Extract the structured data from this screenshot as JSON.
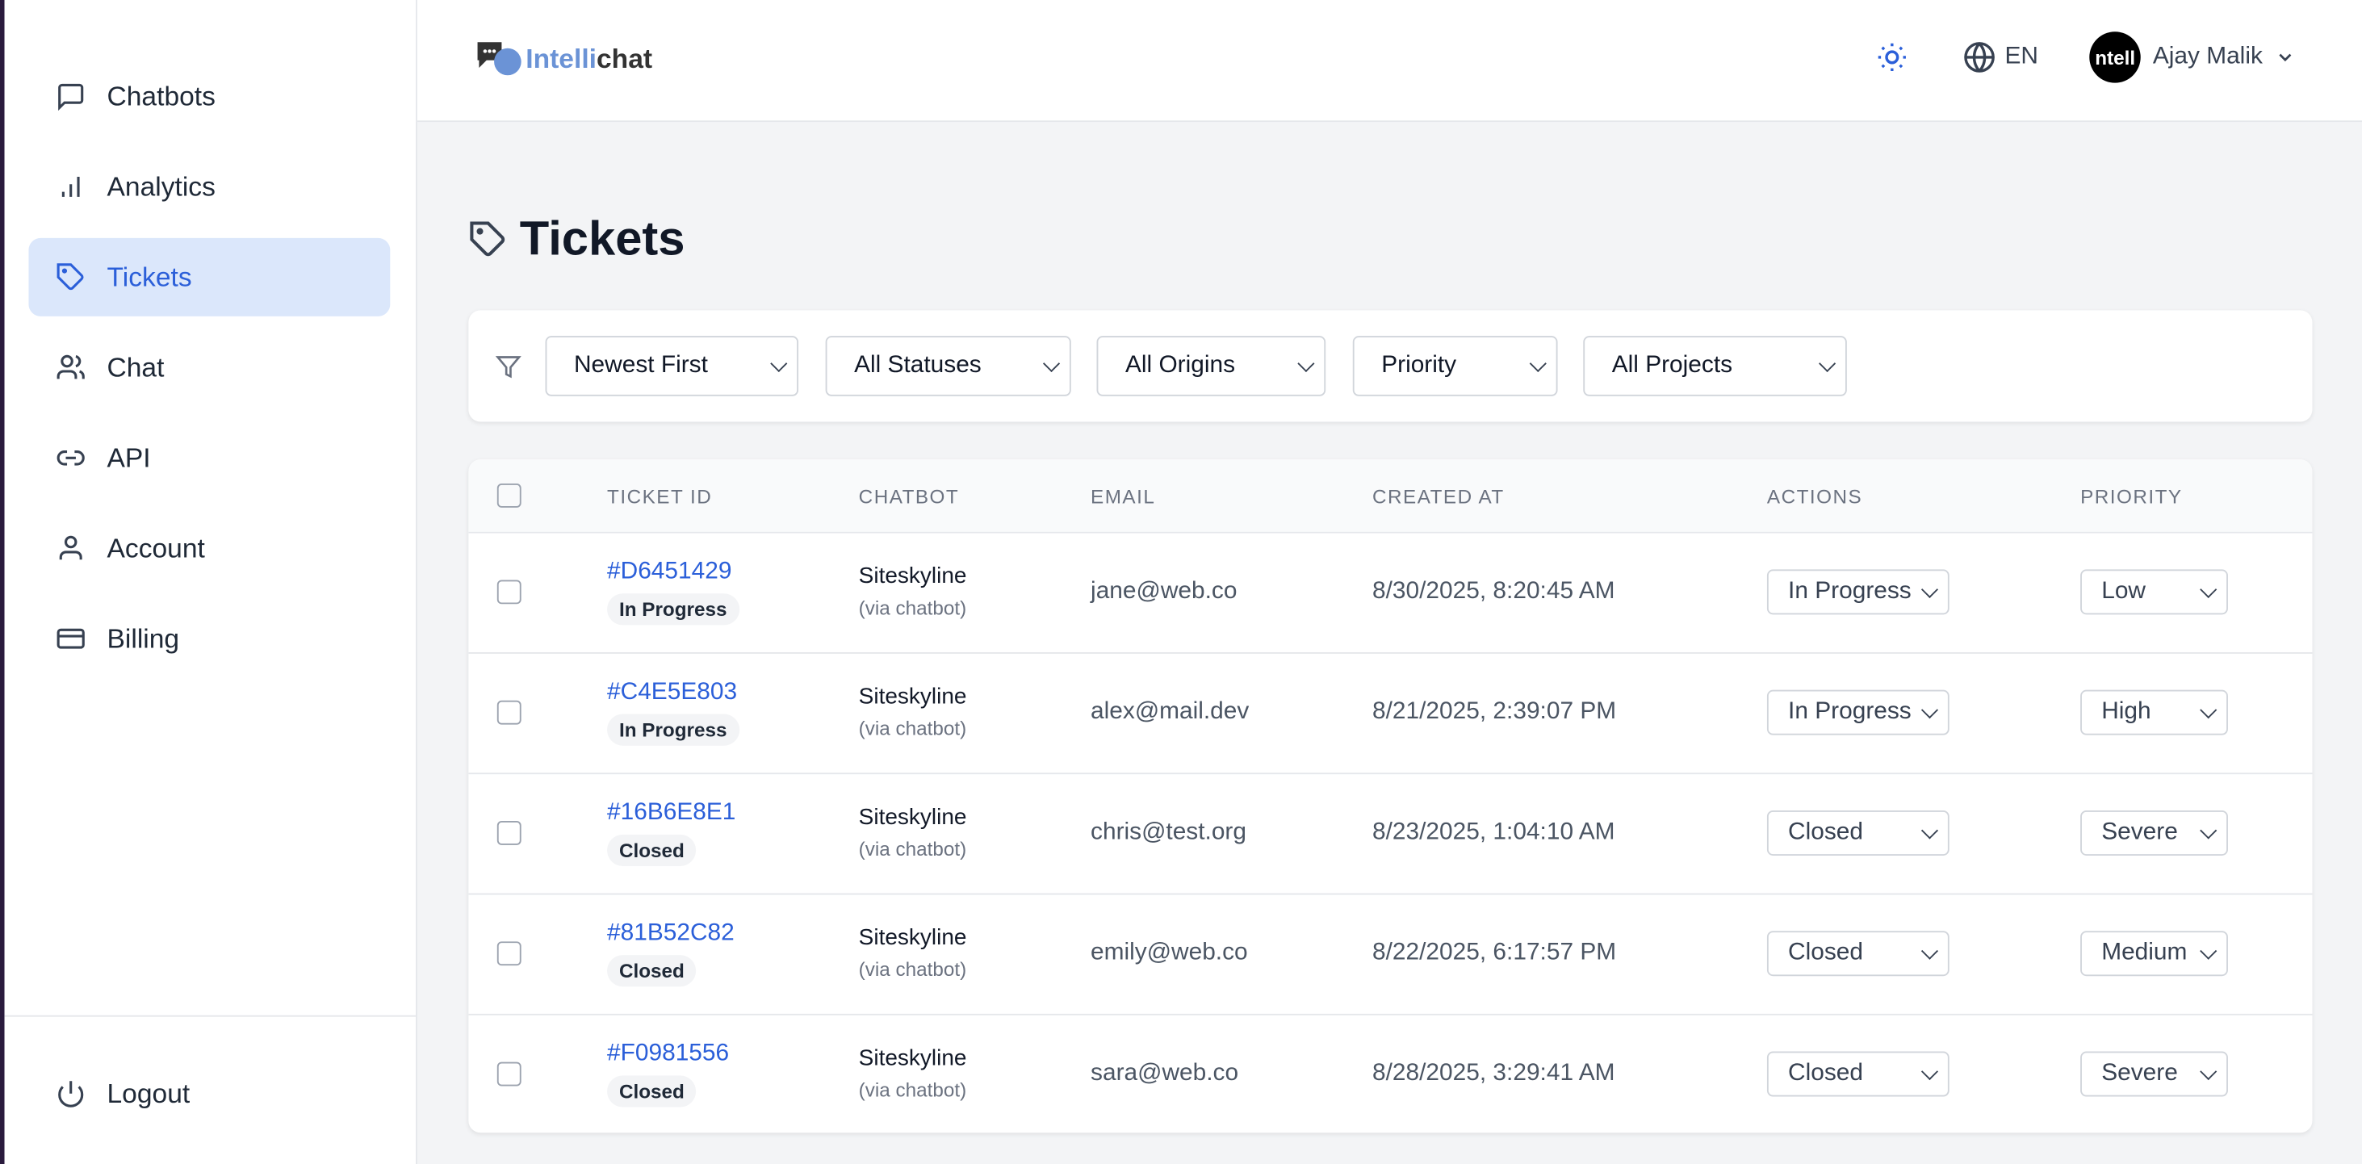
{
  "brand": {
    "name_part1": "Intelli",
    "name_part2": "chat",
    "accent": "#2b5fd9"
  },
  "sidebar": {
    "items": [
      {
        "label": "Chatbots",
        "icon": "message-square-icon"
      },
      {
        "label": "Analytics",
        "icon": "bar-chart-icon"
      },
      {
        "label": "Tickets",
        "icon": "tag-icon",
        "active": true
      },
      {
        "label": "Chat",
        "icon": "users-icon"
      },
      {
        "label": "API",
        "icon": "link-icon"
      },
      {
        "label": "Account",
        "icon": "user-icon"
      },
      {
        "label": "Billing",
        "icon": "credit-card-icon"
      }
    ],
    "logout": "Logout"
  },
  "header": {
    "language": "EN",
    "user": "Ajay Malik",
    "avatar_text": "ntell"
  },
  "page": {
    "title": "Tickets"
  },
  "filters": {
    "sort": "Newest First",
    "status": "All Statuses",
    "origin": "All Origins",
    "priority": "Priority",
    "project": "All Projects"
  },
  "table": {
    "columns": [
      "TICKET ID",
      "CHATBOT",
      "EMAIL",
      "CREATED AT",
      "ACTIONS",
      "PRIORITY"
    ],
    "rows": [
      {
        "id": "#D6451429",
        "status": "In Progress",
        "chatbot": "Siteskyline",
        "via": "(via chatbot)",
        "email": "jane@web.co",
        "created": "8/30/2025, 8:20:45 AM",
        "action": "In Progress",
        "priority": "Low"
      },
      {
        "id": "#C4E5E803",
        "status": "In Progress",
        "chatbot": "Siteskyline",
        "via": "(via chatbot)",
        "email": "alex@mail.dev",
        "created": "8/21/2025, 2:39:07 PM",
        "action": "In Progress",
        "priority": "High"
      },
      {
        "id": "#16B6E8E1",
        "status": "Closed",
        "chatbot": "Siteskyline",
        "via": "(via chatbot)",
        "email": "chris@test.org",
        "created": "8/23/2025, 1:04:10 AM",
        "action": "Closed",
        "priority": "Severe"
      },
      {
        "id": "#81B52C82",
        "status": "Closed",
        "chatbot": "Siteskyline",
        "via": "(via chatbot)",
        "email": "emily@web.co",
        "created": "8/22/2025, 6:17:57 PM",
        "action": "Closed",
        "priority": "Medium"
      },
      {
        "id": "#F0981556",
        "status": "Closed",
        "chatbot": "Siteskyline",
        "via": "(via chatbot)",
        "email": "sara@web.co",
        "created": "8/28/2025, 3:29:41 AM",
        "action": "Closed",
        "priority": "Severe"
      }
    ]
  }
}
